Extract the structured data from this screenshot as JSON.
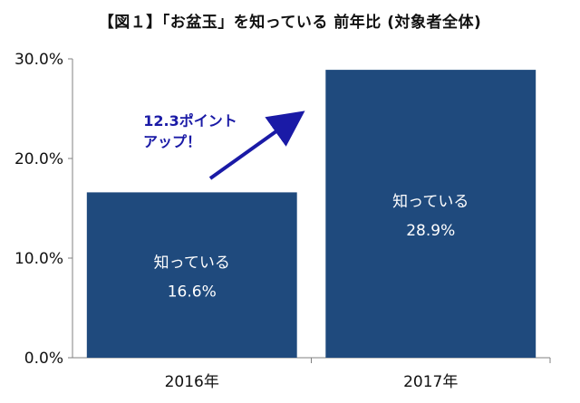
{
  "chart_data": {
    "type": "bar",
    "title": "【図１】「お盆玉」を知っている  前年比 (対象者全体)",
    "categories": [
      "2016年",
      "2017年"
    ],
    "values": [
      16.6,
      28.9
    ],
    "value_unit": "%",
    "bar_labels": [
      "知っている",
      "知っている"
    ],
    "value_labels": [
      "16.6%",
      "28.9%"
    ],
    "ylim": [
      0,
      30
    ],
    "yticks": [
      "0.0%",
      "10.0%",
      "20.0%",
      "30.0%"
    ],
    "xlabel": "",
    "ylabel": "",
    "grid": false,
    "bar_color": "#1f4a7d",
    "annotation": {
      "line1": "12.3ポイント",
      "line2": "アップ！",
      "color": "#1a1aa6"
    }
  }
}
